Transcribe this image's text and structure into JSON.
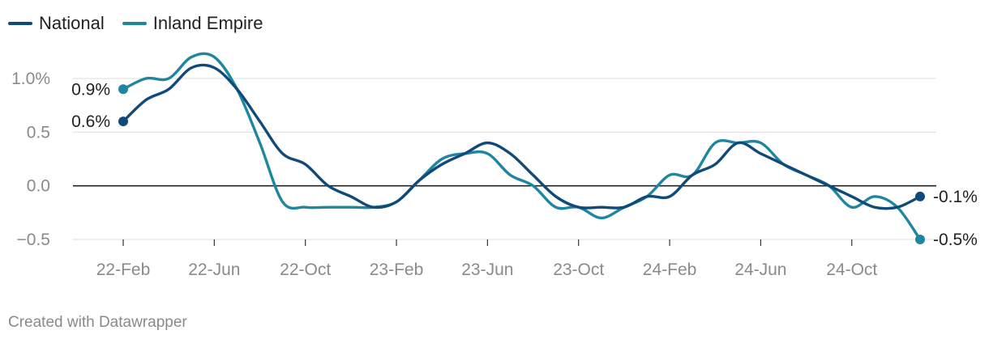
{
  "legend": [
    {
      "name": "National",
      "color": "#0f4a7a"
    },
    {
      "name": "Inland Empire",
      "color": "#1f86a0"
    }
  ],
  "credit": "Created with Datawrapper",
  "chart_data": {
    "type": "line",
    "title": "",
    "xlabel": "",
    "ylabel": "",
    "ylim": [
      -0.5,
      1.0
    ],
    "y_ticks": [
      {
        "value": 1.0,
        "label": "1.0%"
      },
      {
        "value": 0.5,
        "label": "0.5"
      },
      {
        "value": 0.0,
        "label": "0.0"
      },
      {
        "value": -0.5,
        "label": "−0.5"
      }
    ],
    "x_ticks": [
      "22-Feb",
      "22-Jun",
      "22-Oct",
      "23-Feb",
      "23-Jun",
      "23-Oct",
      "24-Feb",
      "24-Jun",
      "24-Oct"
    ],
    "x_tick_index": [
      0,
      4,
      8,
      12,
      16,
      20,
      24,
      28,
      32
    ],
    "x": [
      "2022-02",
      "2022-03",
      "2022-04",
      "2022-05",
      "2022-06",
      "2022-07",
      "2022-08",
      "2022-09",
      "2022-10",
      "2022-11",
      "2022-12",
      "2023-01",
      "2023-02",
      "2023-03",
      "2023-04",
      "2023-05",
      "2023-06",
      "2023-07",
      "2023-08",
      "2023-09",
      "2023-10",
      "2023-11",
      "2023-12",
      "2024-01",
      "2024-02",
      "2024-03",
      "2024-04",
      "2024-05",
      "2024-06",
      "2024-07",
      "2024-08",
      "2024-09",
      "2024-10",
      "2024-11",
      "2024-12",
      "2025-01"
    ],
    "series": [
      {
        "name": "National",
        "color": "#0f4a7a",
        "start_label": "0.6%",
        "end_label": "-0.1%",
        "values": [
          0.6,
          0.8,
          0.9,
          1.1,
          1.1,
          0.9,
          0.6,
          0.3,
          0.2,
          0.0,
          -0.1,
          -0.2,
          -0.15,
          0.05,
          0.2,
          0.3,
          0.4,
          0.3,
          0.1,
          -0.1,
          -0.2,
          -0.2,
          -0.2,
          -0.1,
          -0.1,
          0.1,
          0.2,
          0.4,
          0.3,
          0.2,
          0.1,
          0.0,
          -0.1,
          -0.2,
          -0.2,
          -0.1
        ]
      },
      {
        "name": "Inland Empire",
        "color": "#1f86a0",
        "start_label": "0.9%",
        "end_label": "-0.5%",
        "values": [
          0.9,
          1.0,
          1.0,
          1.2,
          1.2,
          0.9,
          0.4,
          -0.15,
          -0.2,
          -0.2,
          -0.2,
          -0.2,
          -0.15,
          0.05,
          0.25,
          0.3,
          0.3,
          0.1,
          0.0,
          -0.2,
          -0.2,
          -0.3,
          -0.2,
          -0.1,
          0.1,
          0.1,
          0.4,
          0.4,
          0.4,
          0.2,
          0.1,
          0.0,
          -0.2,
          -0.1,
          -0.2,
          -0.5
        ]
      }
    ],
    "grid": true,
    "legend_position": "top-left"
  }
}
